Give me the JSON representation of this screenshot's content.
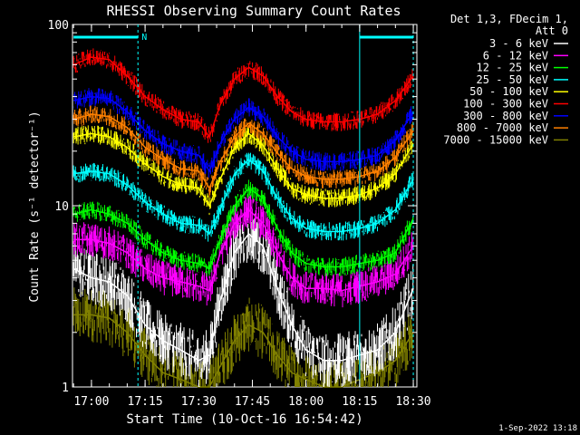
{
  "chart_data": {
    "type": "line",
    "title": "RHESSI Observing Summary Count Rates",
    "xlabel": "Start Time (10-Oct-16 16:54:42)",
    "ylabel": "Count Rate (s⁻¹ detector⁻¹)",
    "yscale": "log",
    "ylim": [
      1,
      100
    ],
    "xlim": [
      "16:54:42",
      "18:31:00"
    ],
    "x_ticks": [
      "17:00",
      "17:15",
      "17:30",
      "17:45",
      "18:00",
      "18:15",
      "18:30"
    ],
    "y_ticks": [
      "1",
      "10",
      "100"
    ],
    "x": [
      "16:55",
      "17:00",
      "17:05",
      "17:10",
      "17:15",
      "17:20",
      "17:25",
      "17:30",
      "17:33",
      "17:36",
      "17:40",
      "17:44",
      "17:48",
      "17:52",
      "17:56",
      "18:00",
      "18:05",
      "18:10",
      "18:15",
      "18:20",
      "18:25",
      "18:30"
    ],
    "series": [
      {
        "name": "3 - 6 keV",
        "color": "#ffffff",
        "values": [
          4.5,
          4.0,
          3.8,
          3.2,
          2.2,
          1.8,
          1.6,
          1.4,
          1.5,
          3.0,
          5.5,
          7.0,
          6.0,
          3.5,
          2.2,
          1.6,
          1.4,
          1.4,
          1.5,
          1.6,
          2.0,
          3.5
        ]
      },
      {
        "name": "6 - 12 keV",
        "color": "#ff00ff",
        "values": [
          6.5,
          6.5,
          6.2,
          5.5,
          4.5,
          4.0,
          3.8,
          3.6,
          3.4,
          5.5,
          8.0,
          9.5,
          8.0,
          5.5,
          4.0,
          3.5,
          3.5,
          3.4,
          3.6,
          3.8,
          4.2,
          6.0
        ]
      },
      {
        "name": "12 - 25 keV",
        "color": "#00ff00",
        "values": [
          9.0,
          9.5,
          9.0,
          8.0,
          6.5,
          5.5,
          5.0,
          4.8,
          4.5,
          6.5,
          10.0,
          12.5,
          11.0,
          7.5,
          5.5,
          4.8,
          4.6,
          4.6,
          4.8,
          5.0,
          5.5,
          8.5
        ]
      },
      {
        "name": "25 - 50 keV",
        "color": "#00ffff",
        "values": [
          15.0,
          15.5,
          15.0,
          13.0,
          10.5,
          9.0,
          8.0,
          7.8,
          7.0,
          9.5,
          15.0,
          18.0,
          15.5,
          11.0,
          8.5,
          7.5,
          7.2,
          7.2,
          7.5,
          8.0,
          9.5,
          14.0
        ]
      },
      {
        "name": "50 - 100 keV",
        "color": "#ffff00",
        "values": [
          24.0,
          25.0,
          24.0,
          21.0,
          17.0,
          14.5,
          13.0,
          12.5,
          10.0,
          14.0,
          21.0,
          25.0,
          21.5,
          16.0,
          12.5,
          11.5,
          11.0,
          11.0,
          11.5,
          12.5,
          15.0,
          22.0
        ]
      },
      {
        "name": "100 - 300 keV",
        "color": "#ff0000",
        "values": [
          60.0,
          66.0,
          64.0,
          52.0,
          40.0,
          34.0,
          30.0,
          29.0,
          24.0,
          36.0,
          50.0,
          58.0,
          52.0,
          40.0,
          33.0,
          30.0,
          29.0,
          29.0,
          30.0,
          32.0,
          38.0,
          52.0
        ]
      },
      {
        "name": "300 - 800 keV",
        "color": "#0000ff",
        "values": [
          38.0,
          40.0,
          39.0,
          33.0,
          26.0,
          22.0,
          20.0,
          19.0,
          15.5,
          22.0,
          30.0,
          35.0,
          31.0,
          24.0,
          20.0,
          18.0,
          17.5,
          17.5,
          18.0,
          19.0,
          23.0,
          33.0
        ]
      },
      {
        "name": "800 - 7000 keV",
        "color": "#ff8000",
        "values": [
          30.0,
          32.0,
          31.0,
          27.0,
          21.0,
          18.0,
          16.0,
          15.5,
          12.5,
          17.5,
          24.0,
          28.5,
          25.0,
          19.5,
          16.0,
          14.5,
          14.0,
          14.0,
          14.5,
          15.5,
          18.5,
          26.0
        ]
      },
      {
        "name": "7000 - 15000 keV",
        "color": "#808000",
        "values": [
          2.5,
          2.5,
          2.4,
          2.0,
          1.5,
          1.2,
          1.1,
          1.0,
          1.0,
          1.3,
          1.8,
          2.2,
          2.0,
          1.5,
          1.2,
          1.1,
          1.0,
          1.0,
          1.1,
          1.2,
          1.4,
          2.0
        ]
      }
    ],
    "legend_header": [
      "Det 1,3, FDecim 1,",
      "Att 0"
    ],
    "legend_placement": "right",
    "bars": [
      {
        "label": "N",
        "from": "16:55",
        "to": "17:13",
        "color": "#00ffff"
      },
      {
        "label": "",
        "from": "18:15",
        "to": "18:30",
        "color": "#00ffff"
      }
    ],
    "vertical_markers": [
      "17:13",
      "18:15",
      "18:30"
    ],
    "footer": "1-Sep-2022 13:18"
  }
}
